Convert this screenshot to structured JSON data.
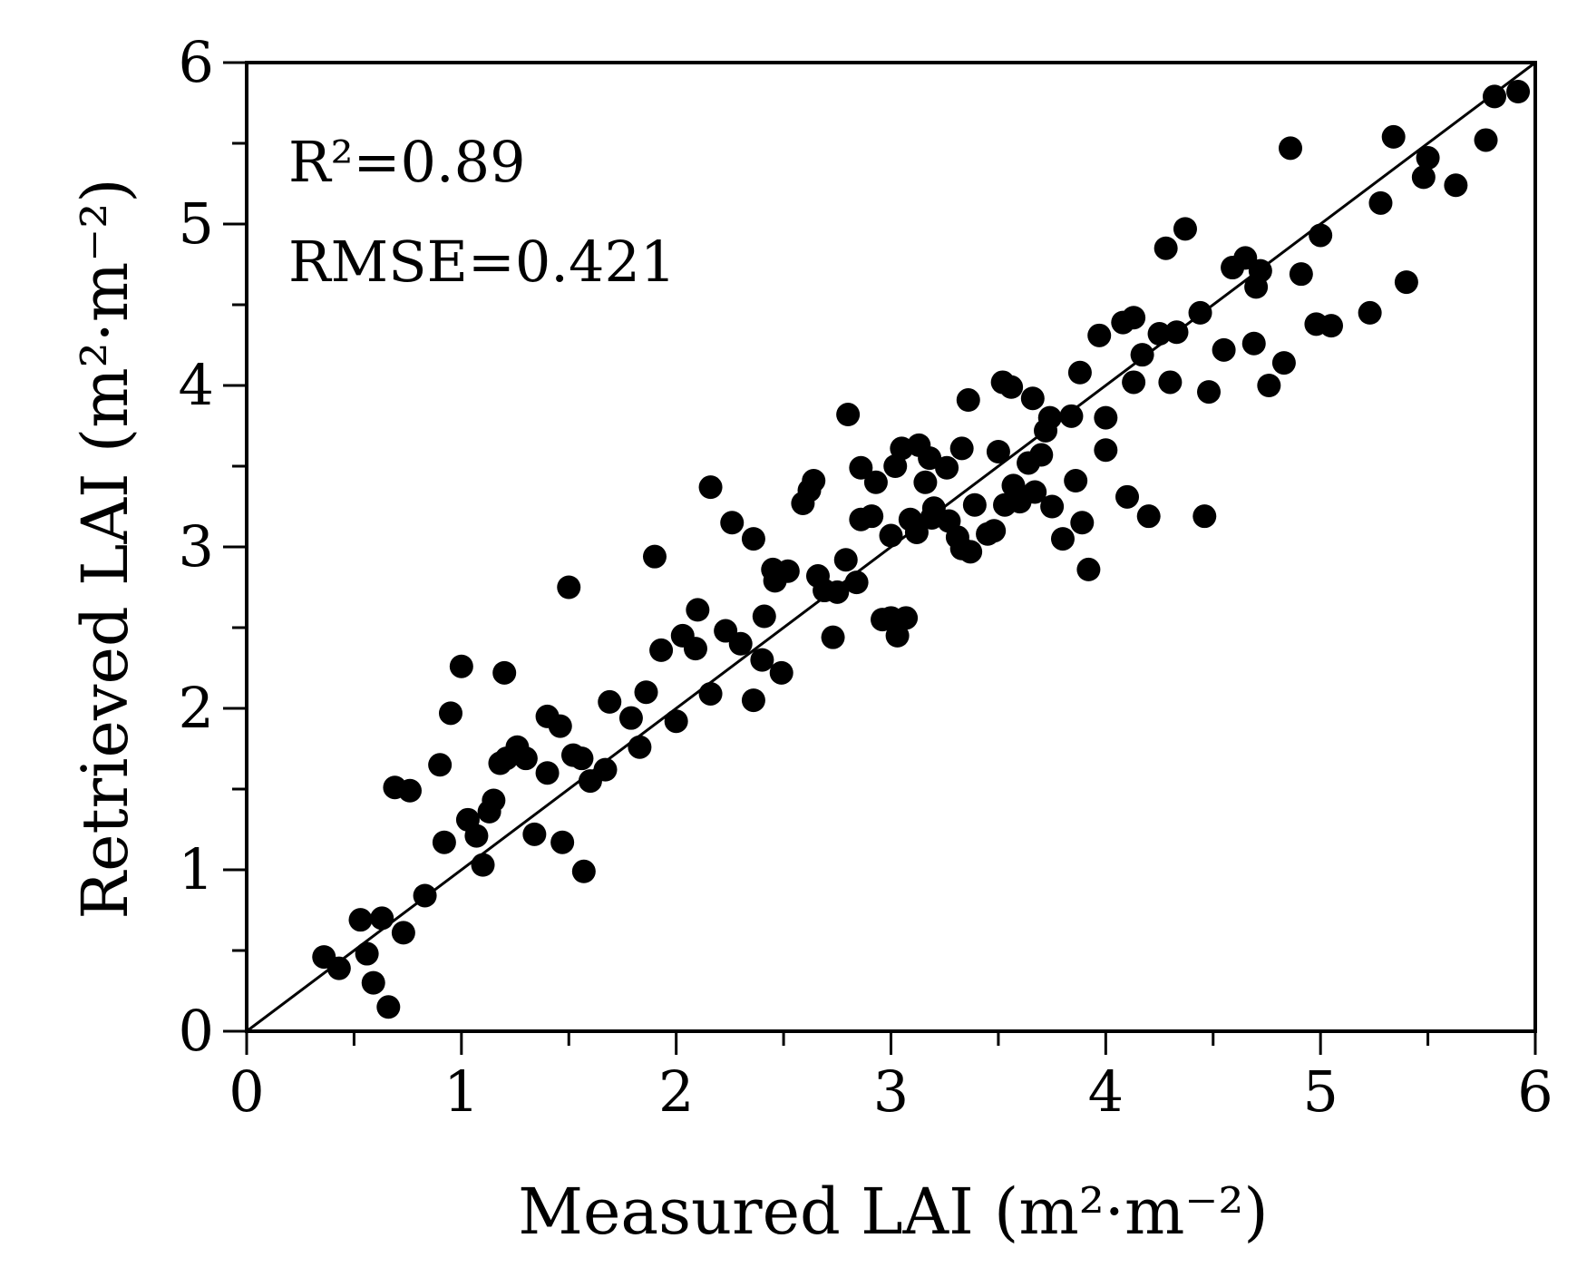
{
  "chart_data": {
    "type": "scatter",
    "xlabel": "Measured LAI (m²·m⁻²)",
    "ylabel": "Retrieved LAI (m²·m⁻²)",
    "xlim": [
      0,
      6
    ],
    "ylim": [
      0,
      6
    ],
    "xticks": [
      "0",
      "1",
      "2",
      "3",
      "4",
      "5",
      "6"
    ],
    "yticks": [
      "0",
      "1",
      "2",
      "3",
      "4",
      "5",
      "6"
    ],
    "grid": false,
    "annotations": {
      "r2": "R²=0.89",
      "rmse": "RMSE=0.421"
    },
    "reference_line": {
      "from": [
        0,
        0
      ],
      "to": [
        6,
        6
      ]
    },
    "marker_color": "#000000",
    "series": [
      {
        "points": [
          [
            0.36,
            0.46
          ],
          [
            0.43,
            0.39
          ],
          [
            0.53,
            0.69
          ],
          [
            0.56,
            0.48
          ],
          [
            0.59,
            0.3
          ],
          [
            0.63,
            0.7
          ],
          [
            0.66,
            0.15
          ],
          [
            0.73,
            0.61
          ],
          [
            0.69,
            1.51
          ],
          [
            0.76,
            1.49
          ],
          [
            0.83,
            0.84
          ],
          [
            0.9,
            1.65
          ],
          [
            0.92,
            1.17
          ],
          [
            0.95,
            1.97
          ],
          [
            1.0,
            2.26
          ],
          [
            1.03,
            1.31
          ],
          [
            1.07,
            1.21
          ],
          [
            1.1,
            1.03
          ],
          [
            1.15,
            1.43
          ],
          [
            1.13,
            1.36
          ],
          [
            1.18,
            1.66
          ],
          [
            1.21,
            1.69
          ],
          [
            1.2,
            2.22
          ],
          [
            1.26,
            1.76
          ],
          [
            1.3,
            1.69
          ],
          [
            1.34,
            1.22
          ],
          [
            1.4,
            1.6
          ],
          [
            1.4,
            1.95
          ],
          [
            1.46,
            1.89
          ],
          [
            1.47,
            1.17
          ],
          [
            1.5,
            2.75
          ],
          [
            1.52,
            1.71
          ],
          [
            1.56,
            1.69
          ],
          [
            1.57,
            0.99
          ],
          [
            1.6,
            1.55
          ],
          [
            1.67,
            1.62
          ],
          [
            1.69,
            2.04
          ],
          [
            1.79,
            1.94
          ],
          [
            1.83,
            1.76
          ],
          [
            1.86,
            2.1
          ],
          [
            1.9,
            2.94
          ],
          [
            1.93,
            2.36
          ],
          [
            2.0,
            1.92
          ],
          [
            2.03,
            2.45
          ],
          [
            2.09,
            2.37
          ],
          [
            2.1,
            2.61
          ],
          [
            2.16,
            2.09
          ],
          [
            2.16,
            3.37
          ],
          [
            2.23,
            2.48
          ],
          [
            2.26,
            3.15
          ],
          [
            2.3,
            2.4
          ],
          [
            2.36,
            2.05
          ],
          [
            2.36,
            3.05
          ],
          [
            2.4,
            2.3
          ],
          [
            2.41,
            2.57
          ],
          [
            2.45,
            2.86
          ],
          [
            2.46,
            2.79
          ],
          [
            2.49,
            2.22
          ],
          [
            2.52,
            2.85
          ],
          [
            2.59,
            3.27
          ],
          [
            2.62,
            3.35
          ],
          [
            2.64,
            3.41
          ],
          [
            2.66,
            2.82
          ],
          [
            2.69,
            2.73
          ],
          [
            2.73,
            2.44
          ],
          [
            2.75,
            2.72
          ],
          [
            2.79,
            2.92
          ],
          [
            2.8,
            3.82
          ],
          [
            2.84,
            2.78
          ],
          [
            2.86,
            3.17
          ],
          [
            2.86,
            3.49
          ],
          [
            2.91,
            3.19
          ],
          [
            2.93,
            3.4
          ],
          [
            2.96,
            2.55
          ],
          [
            3.0,
            3.07
          ],
          [
            3.0,
            2.56
          ],
          [
            3.02,
            3.5
          ],
          [
            3.03,
            2.45
          ],
          [
            3.05,
            3.61
          ],
          [
            3.07,
            2.56
          ],
          [
            3.09,
            3.17
          ],
          [
            3.12,
            3.09
          ],
          [
            3.13,
            3.63
          ],
          [
            3.16,
            3.4
          ],
          [
            3.18,
            3.55
          ],
          [
            3.19,
            3.18
          ],
          [
            3.2,
            3.24
          ],
          [
            3.26,
            3.49
          ],
          [
            3.27,
            3.16
          ],
          [
            3.31,
            3.06
          ],
          [
            3.33,
            2.99
          ],
          [
            3.33,
            3.61
          ],
          [
            3.36,
            3.91
          ],
          [
            3.37,
            2.97
          ],
          [
            3.39,
            3.26
          ],
          [
            3.45,
            3.08
          ],
          [
            3.48,
            3.1
          ],
          [
            3.5,
            3.59
          ],
          [
            3.52,
            4.02
          ],
          [
            3.53,
            3.26
          ],
          [
            3.56,
            3.99
          ],
          [
            3.57,
            3.38
          ],
          [
            3.6,
            3.28
          ],
          [
            3.64,
            3.52
          ],
          [
            3.66,
            3.92
          ],
          [
            3.67,
            3.34
          ],
          [
            3.7,
            3.57
          ],
          [
            3.72,
            3.72
          ],
          [
            3.74,
            3.8
          ],
          [
            3.75,
            3.25
          ],
          [
            3.8,
            3.05
          ],
          [
            3.84,
            3.81
          ],
          [
            3.86,
            3.41
          ],
          [
            3.88,
            4.08
          ],
          [
            3.89,
            3.15
          ],
          [
            3.92,
            2.86
          ],
          [
            3.97,
            4.31
          ],
          [
            4.0,
            3.8
          ],
          [
            4.0,
            3.6
          ],
          [
            4.08,
            4.39
          ],
          [
            4.1,
            3.31
          ],
          [
            4.13,
            4.02
          ],
          [
            4.13,
            4.42
          ],
          [
            4.17,
            4.19
          ],
          [
            4.2,
            3.19
          ],
          [
            4.25,
            4.32
          ],
          [
            4.28,
            4.85
          ],
          [
            4.3,
            4.02
          ],
          [
            4.33,
            4.33
          ],
          [
            4.37,
            4.97
          ],
          [
            4.44,
            4.45
          ],
          [
            4.46,
            3.19
          ],
          [
            4.48,
            3.96
          ],
          [
            4.55,
            4.22
          ],
          [
            4.59,
            4.73
          ],
          [
            4.65,
            4.79
          ],
          [
            4.69,
            4.26
          ],
          [
            4.7,
            4.61
          ],
          [
            4.72,
            4.71
          ],
          [
            4.76,
            4.0
          ],
          [
            4.83,
            4.14
          ],
          [
            4.86,
            5.47
          ],
          [
            4.91,
            4.69
          ],
          [
            4.98,
            4.38
          ],
          [
            5.0,
            4.93
          ],
          [
            5.05,
            4.37
          ],
          [
            5.23,
            4.45
          ],
          [
            5.28,
            5.13
          ],
          [
            5.34,
            5.54
          ],
          [
            5.4,
            4.64
          ],
          [
            5.48,
            5.29
          ],
          [
            5.5,
            5.41
          ],
          [
            5.63,
            5.24
          ],
          [
            5.77,
            5.52
          ],
          [
            5.81,
            5.79
          ],
          [
            5.92,
            5.82
          ]
        ]
      }
    ]
  }
}
